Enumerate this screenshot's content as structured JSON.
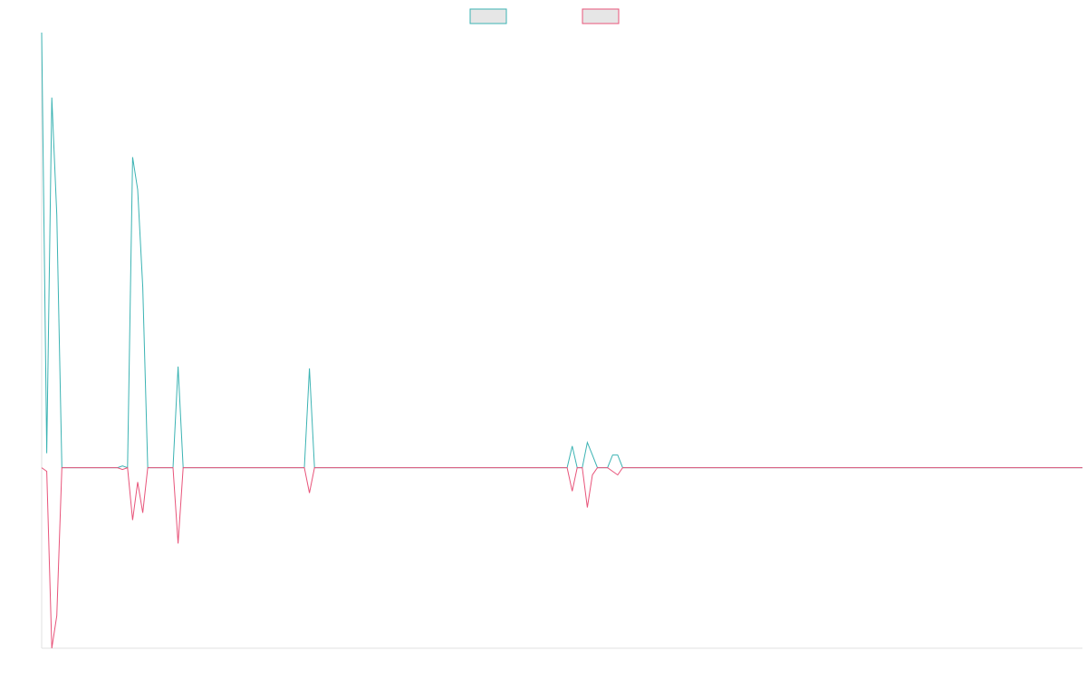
{
  "chart_data": {
    "type": "line",
    "title": "",
    "xlabel": "",
    "ylabel": "",
    "grid": false,
    "legend_position": "top-center",
    "ylim": [
      -100,
      241
    ],
    "series": [
      {
        "color": "#3bb3b3",
        "legend_fill": "#e6e6e6",
        "points": [
          [
            0,
            241
          ],
          [
            1,
            8
          ],
          [
            2,
            205
          ],
          [
            3,
            140
          ],
          [
            4,
            0
          ],
          [
            15,
            0
          ],
          [
            16,
            1
          ],
          [
            17,
            0
          ],
          [
            18,
            172
          ],
          [
            19,
            154
          ],
          [
            20,
            100
          ],
          [
            21,
            0
          ],
          [
            26,
            0
          ],
          [
            27,
            56
          ],
          [
            28,
            0
          ],
          [
            52,
            0
          ],
          [
            53,
            55
          ],
          [
            54,
            0
          ],
          [
            104,
            0
          ],
          [
            105,
            12
          ],
          [
            106,
            0
          ],
          [
            107,
            0
          ],
          [
            108,
            14
          ],
          [
            109,
            7
          ],
          [
            110,
            0
          ],
          [
            112,
            0
          ],
          [
            113,
            7
          ],
          [
            114,
            7
          ],
          [
            115,
            0
          ],
          [
            206,
            0
          ]
        ]
      },
      {
        "color": "#e8547a",
        "legend_fill": "#e6e6e6",
        "points": [
          [
            0,
            0
          ],
          [
            1,
            -2
          ],
          [
            2,
            -100
          ],
          [
            3,
            -82
          ],
          [
            4,
            0
          ],
          [
            15,
            0
          ],
          [
            16,
            -1
          ],
          [
            17,
            0
          ],
          [
            18,
            -29
          ],
          [
            19,
            -8
          ],
          [
            20,
            -25
          ],
          [
            21,
            0
          ],
          [
            26,
            0
          ],
          [
            27,
            -42
          ],
          [
            28,
            0
          ],
          [
            52,
            0
          ],
          [
            53,
            -14
          ],
          [
            54,
            0
          ],
          [
            104,
            0
          ],
          [
            105,
            -13
          ],
          [
            106,
            0
          ],
          [
            107,
            0
          ],
          [
            108,
            -22
          ],
          [
            109,
            -4
          ],
          [
            110,
            0
          ],
          [
            112,
            0
          ],
          [
            113,
            -2
          ],
          [
            114,
            -4
          ],
          [
            115,
            0
          ],
          [
            206,
            0
          ]
        ]
      }
    ]
  }
}
